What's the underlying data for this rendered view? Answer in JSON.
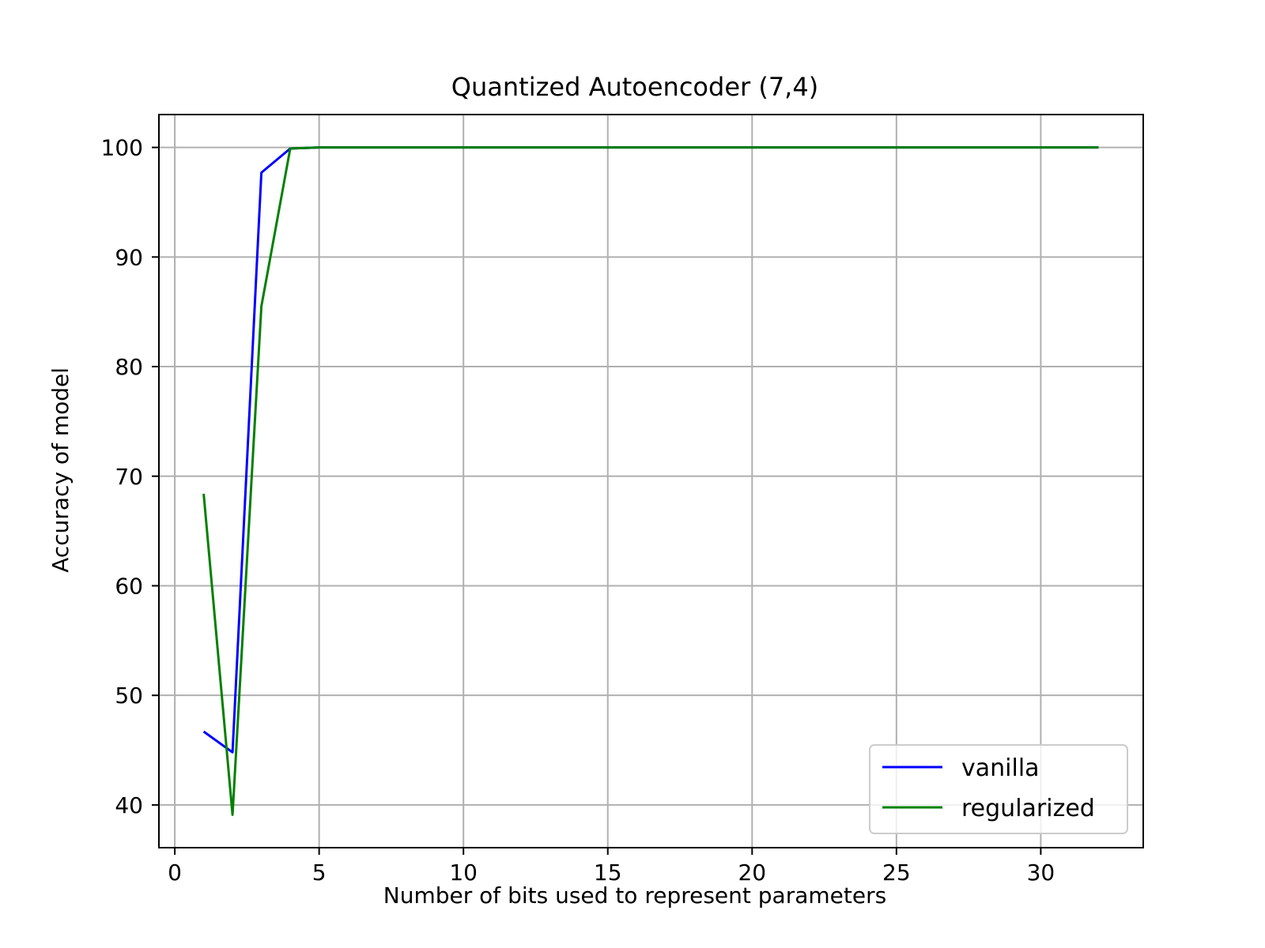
{
  "chart_data": {
    "type": "line",
    "title": "Quantized Autoencoder (7,4)",
    "xlabel": "Number of bits used to represent parameters",
    "ylabel": "Accuracy of model",
    "xlim": [
      -0.55,
      33.55
    ],
    "ylim": [
      36.1,
      103.0
    ],
    "xticks": [
      0,
      5,
      10,
      15,
      20,
      25,
      30
    ],
    "yticks": [
      40,
      50,
      60,
      70,
      80,
      90,
      100
    ],
    "grid": true,
    "legend_position": "lower-right",
    "series": [
      {
        "name": "vanilla",
        "color": "#0000ff",
        "x": [
          1,
          2,
          3,
          4,
          5,
          6,
          7,
          8,
          9,
          10,
          11,
          12,
          13,
          14,
          15,
          16,
          17,
          18,
          19,
          20,
          21,
          22,
          23,
          24,
          25,
          26,
          27,
          28,
          29,
          30,
          31,
          32
        ],
        "y": [
          46.7,
          44.8,
          97.7,
          99.9,
          100,
          100,
          100,
          100,
          100,
          100,
          100,
          100,
          100,
          100,
          100,
          100,
          100,
          100,
          100,
          100,
          100,
          100,
          100,
          100,
          100,
          100,
          100,
          100,
          100,
          100,
          100,
          100
        ]
      },
      {
        "name": "regularized",
        "color": "#008000",
        "x": [
          1,
          2,
          3,
          4,
          5,
          6,
          7,
          8,
          9,
          10,
          11,
          12,
          13,
          14,
          15,
          16,
          17,
          18,
          19,
          20,
          21,
          22,
          23,
          24,
          25,
          26,
          27,
          28,
          29,
          30,
          31,
          32
        ],
        "y": [
          68.4,
          39.1,
          85.5,
          99.9,
          100,
          100,
          100,
          100,
          100,
          100,
          100,
          100,
          100,
          100,
          100,
          100,
          100,
          100,
          100,
          100,
          100,
          100,
          100,
          100,
          100,
          100,
          100,
          100,
          100,
          100,
          100,
          100
        ]
      }
    ]
  }
}
